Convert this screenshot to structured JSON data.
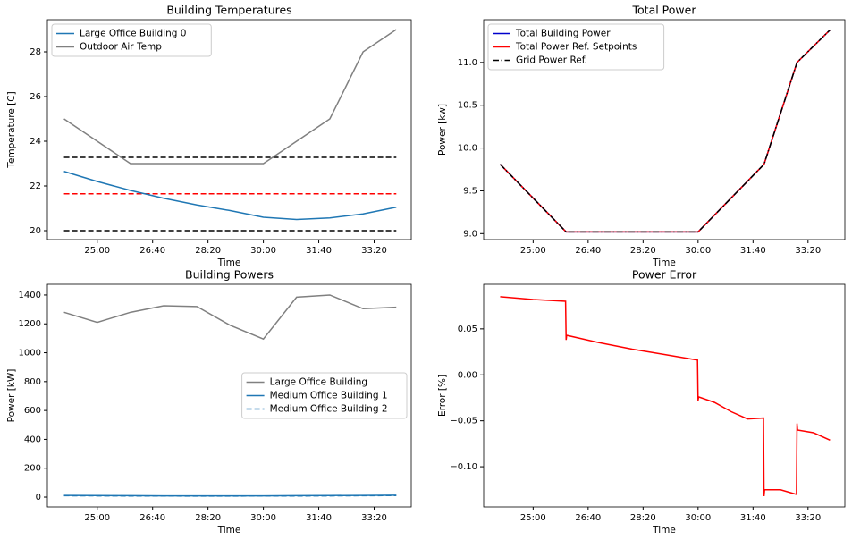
{
  "chart_data": [
    {
      "type": "line",
      "title": "Building Temperatures",
      "xlabel": "Time",
      "ylabel": "Temperature [C]",
      "x": [
        1440,
        1500,
        1560,
        1620,
        1680,
        1740,
        1800,
        1860,
        1920,
        1980,
        2040
      ],
      "series": [
        {
          "name": "Large Office Building 0",
          "color": "#1f77b4",
          "linestyle": "solid",
          "values": [
            22.65,
            22.2,
            21.8,
            21.45,
            21.15,
            20.9,
            20.6,
            20.5,
            20.57,
            20.75,
            21.05
          ]
        },
        {
          "name": "Outdoor Air Temp",
          "color": "gray",
          "linestyle": "solid",
          "values": [
            25,
            24,
            23,
            23,
            23,
            23,
            23,
            24,
            25,
            28,
            29
          ]
        }
      ],
      "hlines": [
        {
          "value": 23.28,
          "color": "black",
          "linestyle": "dashed"
        },
        {
          "value": 21.65,
          "color": "red",
          "linestyle": "dashed"
        },
        {
          "value": 20.0,
          "color": "black",
          "linestyle": "dashed"
        }
      ],
      "xlim": [
        1410,
        2067
      ],
      "ylim": [
        19.6,
        29.44
      ],
      "xticks": [
        {
          "value": 1500,
          "label": "25:00"
        },
        {
          "value": 1600,
          "label": "26:40"
        },
        {
          "value": 1700,
          "label": "28:20"
        },
        {
          "value": 1800,
          "label": "30:00"
        },
        {
          "value": 1900,
          "label": "31:40"
        },
        {
          "value": 2000,
          "label": "33:20"
        }
      ],
      "yticks": [
        20,
        22,
        24,
        26,
        28
      ],
      "legend": "upper left"
    },
    {
      "type": "line",
      "title": "Total Power",
      "xlabel": "Time",
      "ylabel": "Power [kw]",
      "x": [
        1440,
        1500,
        1560,
        1620,
        1680,
        1740,
        1800,
        1860,
        1920,
        1980,
        2040
      ],
      "series": [
        {
          "name": "Total Building Power",
          "color": "#0000cc",
          "linestyle": "solid",
          "values": [
            9.81,
            9.415,
            9.02,
            9.02,
            9.02,
            9.02,
            9.02,
            9.415,
            9.81,
            11.0,
            11.38
          ]
        },
        {
          "name": "Total Power Ref. Setpoints",
          "color": "red",
          "linestyle": "solid",
          "values": [
            9.81,
            9.415,
            9.02,
            9.02,
            9.02,
            9.02,
            9.02,
            9.415,
            9.81,
            11.0,
            11.38
          ]
        },
        {
          "name": "Grid Power Ref.",
          "color": "black",
          "linestyle": "dashdot",
          "values": [
            9.81,
            9.415,
            9.02,
            9.02,
            9.02,
            9.02,
            9.02,
            9.415,
            9.81,
            11.0,
            11.38
          ]
        }
      ],
      "xlim": [
        1410,
        2067
      ],
      "ylim": [
        8.93,
        11.5
      ],
      "xticks": [
        {
          "value": 1500,
          "label": "25:00"
        },
        {
          "value": 1600,
          "label": "26:40"
        },
        {
          "value": 1700,
          "label": "28:20"
        },
        {
          "value": 1800,
          "label": "30:00"
        },
        {
          "value": 1900,
          "label": "31:40"
        },
        {
          "value": 2000,
          "label": "33:20"
        }
      ],
      "yticks": [
        {
          "value": 9,
          "label": "9.0"
        },
        9.5,
        {
          "value": 10,
          "label": "10.0"
        },
        10.5,
        {
          "value": 11,
          "label": "11.0"
        }
      ],
      "legend": "upper left"
    },
    {
      "type": "line",
      "title": "Building Powers",
      "xlabel": "Time",
      "ylabel": "Power [kW]",
      "x": [
        1440,
        1500,
        1560,
        1620,
        1680,
        1740,
        1800,
        1860,
        1920,
        1980,
        2040
      ],
      "series": [
        {
          "name": "Large Office Building",
          "color": "gray",
          "linestyle": "solid",
          "values": [
            1280,
            1210,
            1280,
            1325,
            1320,
            1190,
            1095,
            1385,
            1400,
            1305,
            1315
          ]
        },
        {
          "name": "Medium Office Building 1",
          "color": "#1f77b4",
          "linestyle": "solid",
          "values": [
            12,
            11,
            10,
            9,
            9,
            9,
            9,
            10,
            11,
            12,
            13
          ]
        },
        {
          "name": "Medium Office Building 2",
          "color": "#1f77b4",
          "linestyle": "dashed",
          "values": [
            10,
            9,
            8,
            8,
            7,
            7,
            8,
            8,
            9,
            10,
            11
          ]
        }
      ],
      "xlim": [
        1410,
        2067
      ],
      "ylim": [
        -68,
        1474
      ],
      "xticks": [
        {
          "value": 1500,
          "label": "25:00"
        },
        {
          "value": 1600,
          "label": "26:40"
        },
        {
          "value": 1700,
          "label": "28:20"
        },
        {
          "value": 1800,
          "label": "30:00"
        },
        {
          "value": 1900,
          "label": "31:40"
        },
        {
          "value": 2000,
          "label": "33:20"
        }
      ],
      "yticks": [
        0,
        200,
        400,
        600,
        800,
        1000,
        1200,
        1400
      ],
      "legend": "center right"
    },
    {
      "type": "line",
      "title": "Power Error",
      "xlabel": "Time",
      "ylabel": "Error [%]",
      "x": [
        1440,
        1500,
        1559,
        1560,
        1561,
        1620,
        1680,
        1740,
        1770,
        1799,
        1800,
        1801,
        1830,
        1860,
        1890,
        1919,
        1920,
        1921,
        1950,
        1979,
        1980,
        1981,
        2010,
        2040
      ],
      "values": [
        0.085,
        0.082,
        0.08,
        0.038,
        0.043,
        0.035,
        0.028,
        0.022,
        0.019,
        0.016,
        -0.028,
        -0.024,
        -0.03,
        -0.04,
        -0.048,
        -0.047,
        -0.132,
        -0.125,
        -0.125,
        -0.13,
        -0.053,
        -0.06,
        -0.063,
        -0.071
      ],
      "color": "red",
      "xlim": [
        1410,
        2067
      ],
      "ylim": [
        -0.1437,
        0.0985
      ],
      "xticks": [
        {
          "value": 1500,
          "label": "25:00"
        },
        {
          "value": 1600,
          "label": "26:40"
        },
        {
          "value": 1700,
          "label": "28:20"
        },
        {
          "value": 1800,
          "label": "30:00"
        },
        {
          "value": 1900,
          "label": "31:40"
        },
        {
          "value": 2000,
          "label": "33:20"
        }
      ],
      "yticks": [
        {
          "value": -0.1,
          "label": "−0.10"
        },
        {
          "value": -0.05,
          "label": "−0.05"
        },
        {
          "value": 0,
          "label": "0.00"
        },
        {
          "value": 0.05,
          "label": "0.05"
        }
      ]
    }
  ]
}
